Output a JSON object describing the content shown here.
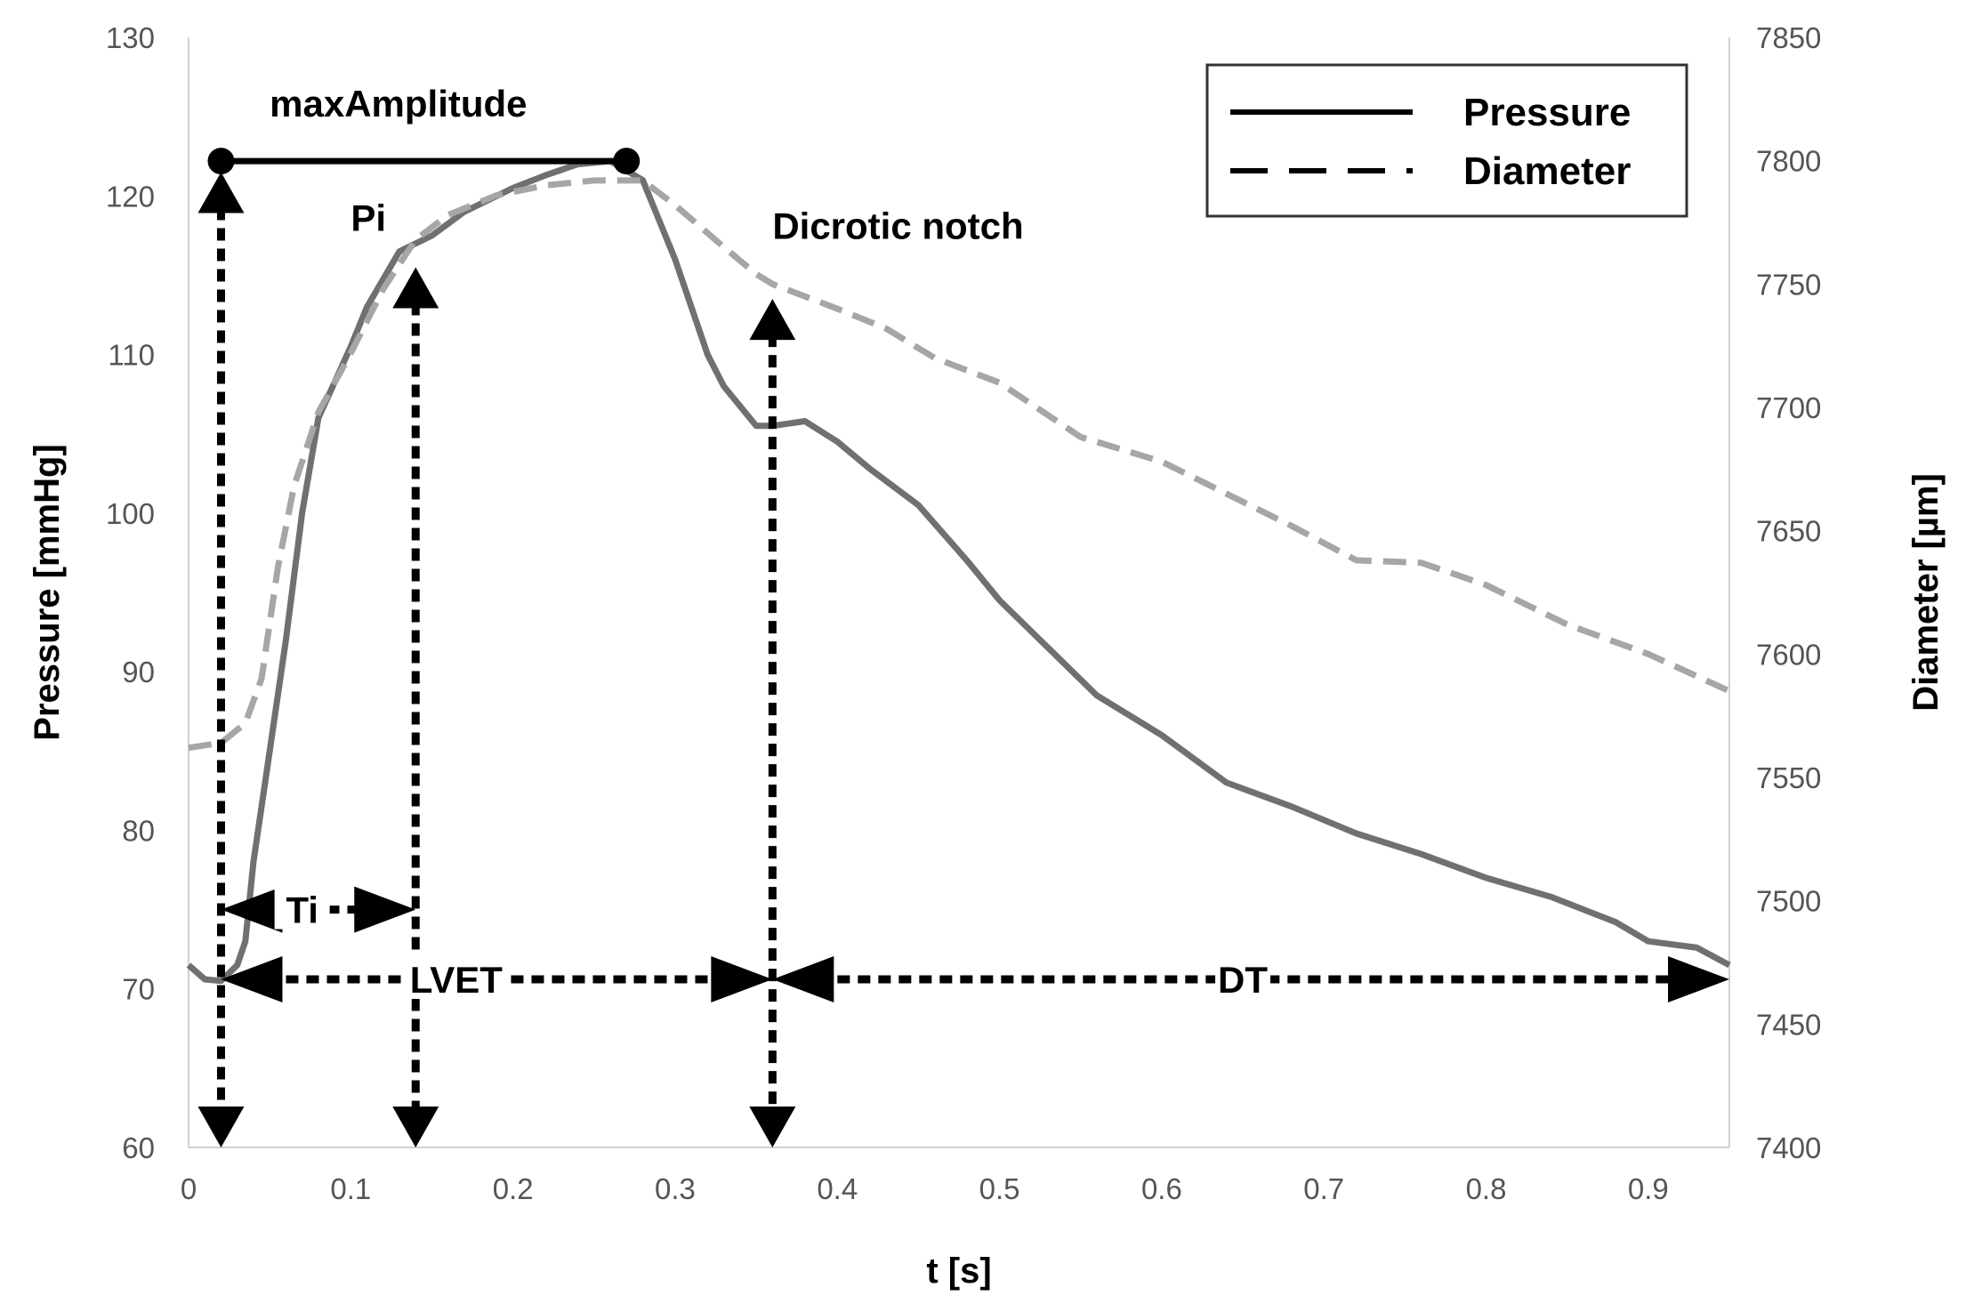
{
  "chart_data": {
    "type": "line",
    "xlabel": "t [s]",
    "ylabel": "Pressure [mmHg]",
    "y2label": "Diameter [µm]",
    "xlim": [
      0,
      0.95
    ],
    "ylim": [
      60,
      130
    ],
    "y2lim": [
      7400,
      7850
    ],
    "x_ticks": [
      "0",
      "0.1",
      "0.2",
      "0.3",
      "0.4",
      "0.5",
      "0.6",
      "0.7",
      "0.8",
      "0.9"
    ],
    "y_ticks": [
      "60",
      "70",
      "80",
      "90",
      "100",
      "110",
      "120",
      "130"
    ],
    "y2_ticks": [
      "7400",
      "7450",
      "7500",
      "7550",
      "7600",
      "7650",
      "7700",
      "7750",
      "7800",
      "7850"
    ],
    "grid": false,
    "legend": "top-right",
    "series": [
      {
        "name": "Pressure",
        "axis": "left",
        "style": "solid",
        "color": "#707070",
        "points": [
          [
            0.0,
            71.5
          ],
          [
            0.01,
            70.6
          ],
          [
            0.02,
            70.5
          ],
          [
            0.03,
            71.5
          ],
          [
            0.035,
            73.0
          ],
          [
            0.04,
            78.0
          ],
          [
            0.05,
            85.0
          ],
          [
            0.06,
            92.0
          ],
          [
            0.07,
            100.0
          ],
          [
            0.08,
            106.0
          ],
          [
            0.1,
            110.5
          ],
          [
            0.11,
            113.0
          ],
          [
            0.13,
            116.5
          ],
          [
            0.15,
            117.5
          ],
          [
            0.17,
            119.0
          ],
          [
            0.2,
            120.5
          ],
          [
            0.22,
            121.3
          ],
          [
            0.24,
            122.0
          ],
          [
            0.26,
            122.2
          ],
          [
            0.28,
            121.0
          ],
          [
            0.3,
            116.0
          ],
          [
            0.32,
            110.0
          ],
          [
            0.33,
            108.0
          ],
          [
            0.35,
            105.5
          ],
          [
            0.36,
            105.5
          ],
          [
            0.38,
            105.8
          ],
          [
            0.4,
            104.5
          ],
          [
            0.42,
            102.8
          ],
          [
            0.45,
            100.5
          ],
          [
            0.48,
            97.0
          ],
          [
            0.5,
            94.5
          ],
          [
            0.53,
            91.5
          ],
          [
            0.56,
            88.5
          ],
          [
            0.6,
            86.0
          ],
          [
            0.64,
            83.0
          ],
          [
            0.68,
            81.5
          ],
          [
            0.72,
            79.8
          ],
          [
            0.76,
            78.5
          ],
          [
            0.8,
            77.0
          ],
          [
            0.84,
            75.8
          ],
          [
            0.88,
            74.2
          ],
          [
            0.9,
            73.0
          ],
          [
            0.93,
            72.6
          ],
          [
            0.95,
            71.5
          ]
        ]
      },
      {
        "name": "Diameter",
        "axis": "right",
        "style": "dashed",
        "color": "#a6a6a6",
        "points": [
          [
            0.0,
            7562
          ],
          [
            0.02,
            7564
          ],
          [
            0.035,
            7572
          ],
          [
            0.045,
            7590
          ],
          [
            0.055,
            7635
          ],
          [
            0.065,
            7668
          ],
          [
            0.08,
            7698
          ],
          [
            0.1,
            7722
          ],
          [
            0.12,
            7748
          ],
          [
            0.14,
            7768
          ],
          [
            0.16,
            7778
          ],
          [
            0.19,
            7786
          ],
          [
            0.22,
            7790
          ],
          [
            0.25,
            7792
          ],
          [
            0.28,
            7792
          ],
          [
            0.3,
            7782
          ],
          [
            0.33,
            7765
          ],
          [
            0.35,
            7754
          ],
          [
            0.36,
            7750
          ],
          [
            0.38,
            7745
          ],
          [
            0.4,
            7740
          ],
          [
            0.43,
            7732
          ],
          [
            0.46,
            7720
          ],
          [
            0.5,
            7710
          ],
          [
            0.55,
            7688
          ],
          [
            0.6,
            7678
          ],
          [
            0.64,
            7665
          ],
          [
            0.68,
            7652
          ],
          [
            0.72,
            7638
          ],
          [
            0.76,
            7637
          ],
          [
            0.8,
            7628
          ],
          [
            0.85,
            7612
          ],
          [
            0.9,
            7600
          ],
          [
            0.95,
            7585
          ]
        ]
      }
    ],
    "annotations": [
      {
        "text": "maxAmplitude",
        "t": 0.05,
        "pressure": 125.0
      },
      {
        "text": "Pi",
        "t": 0.1,
        "pressure": 117.8
      },
      {
        "text": "Dicrotic notch",
        "t": 0.36,
        "pressure": 117.3
      },
      {
        "text": "Ti",
        "t": 0.07,
        "pressure": 75.0
      },
      {
        "text": "LVET",
        "t": 0.165,
        "pressure": 70.6
      },
      {
        "text": "DT",
        "t": 0.65,
        "pressure": 70.6
      }
    ],
    "markers": {
      "max_amplitude": {
        "t_start": 0.02,
        "t_end": 0.27,
        "pressure": 122.2
      },
      "vertical_arrows": [
        {
          "t": 0.02,
          "from": 121.5,
          "to": 60.0
        },
        {
          "t": 0.14,
          "from": 115.5,
          "to": 60.0
        },
        {
          "t": 0.36,
          "from": 113.5,
          "to": 60.0
        }
      ],
      "horizontal_arrows": [
        {
          "label": "Ti",
          "from": 0.02,
          "to": 0.14,
          "pressure": 75.0
        },
        {
          "label": "LVET",
          "from": 0.02,
          "to": 0.36,
          "pressure": 70.6
        },
        {
          "label": "DT",
          "from": 0.36,
          "to": 0.95,
          "pressure": 70.6
        }
      ]
    }
  }
}
